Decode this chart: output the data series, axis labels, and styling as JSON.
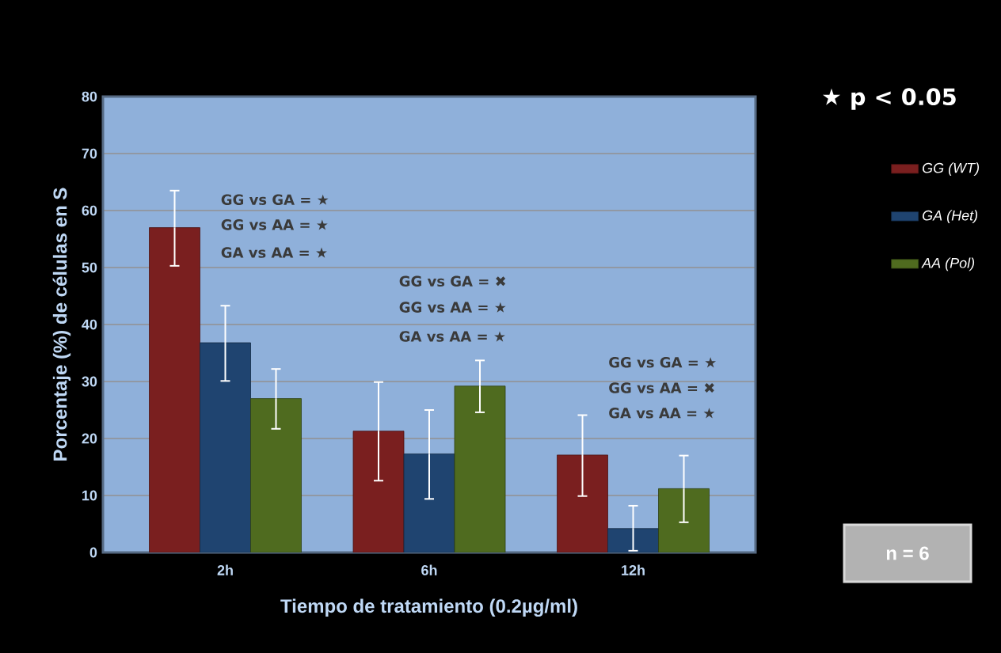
{
  "chart_data": {
    "type": "bar",
    "xlabel": "Tiempo de tratamiento (0.2µg/ml)",
    "ylabel": "Porcentaje (%) de células en S",
    "categories": [
      "2h",
      "6h",
      "12h"
    ],
    "series": [
      {
        "name": "GG (WT)",
        "color": "#7a1f1f",
        "values": [
          57,
          21.3,
          17.1
        ],
        "errors": [
          [
            50.3,
            63.5
          ],
          [
            12.6,
            29.9
          ],
          [
            9.9,
            24.1
          ]
        ]
      },
      {
        "name": "GA (Het)",
        "color": "#1f4470",
        "values": [
          36.8,
          17.3,
          4.2
        ],
        "errors": [
          [
            30.1,
            43.3
          ],
          [
            9.4,
            25
          ],
          [
            0.3,
            8.2
          ]
        ]
      },
      {
        "name": "AA (Pol)",
        "color": "#4f6b1f",
        "values": [
          27,
          29.2,
          11.2
        ],
        "errors": [
          [
            21.7,
            32.2
          ],
          [
            24.6,
            33.7
          ],
          [
            5.3,
            17
          ]
        ]
      }
    ],
    "ylim": [
      0,
      80
    ],
    "yticks": [
      0,
      10,
      20,
      30,
      40,
      50,
      60,
      70,
      80
    ],
    "grid": "y",
    "legend": "top right",
    "annotations": [
      "GG vs GA = ★",
      "GG vs AA = ★",
      "GA vs AA = ★",
      "GG vs GA = ✖",
      "GG vs AA = ★",
      "GA vs AA = ★",
      "GG vs GA = ★",
      "GG vs AA = ✖",
      "GA vs AA = ★",
      "★ p < 0.05",
      "n = 6"
    ]
  }
}
